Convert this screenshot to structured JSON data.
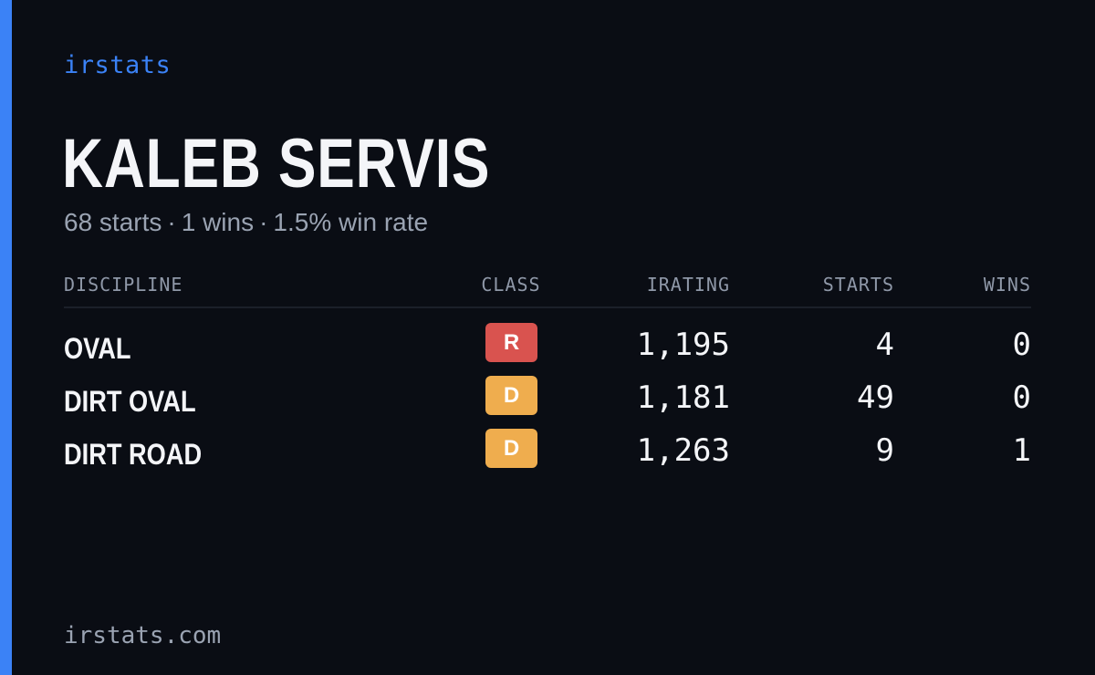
{
  "brand": "irstats",
  "driver": {
    "name": "KALEB SERVIS",
    "summary": {
      "starts": "68 starts",
      "wins": "1 wins",
      "win_rate": "1.5% win rate",
      "separator": "·"
    }
  },
  "table": {
    "headers": {
      "discipline": "DISCIPLINE",
      "class": "CLASS",
      "irating": "IRATING",
      "starts": "STARTS",
      "wins": "WINS"
    },
    "rows": [
      {
        "discipline": "OVAL",
        "class": "R",
        "class_color": "#d9534f",
        "irating": "1,195",
        "starts": "4",
        "wins": "0"
      },
      {
        "discipline": "DIRT OVAL",
        "class": "D",
        "class_color": "#efad4e",
        "irating": "1,181",
        "starts": "49",
        "wins": "0"
      },
      {
        "discipline": "DIRT ROAD",
        "class": "D",
        "class_color": "#efad4e",
        "irating": "1,263",
        "starts": "9",
        "wins": "1"
      }
    ]
  },
  "footer": "irstats.com",
  "colors": {
    "accent": "#3b82f6",
    "background": "#0a0d14",
    "muted_text": "#9aa3b2"
  }
}
